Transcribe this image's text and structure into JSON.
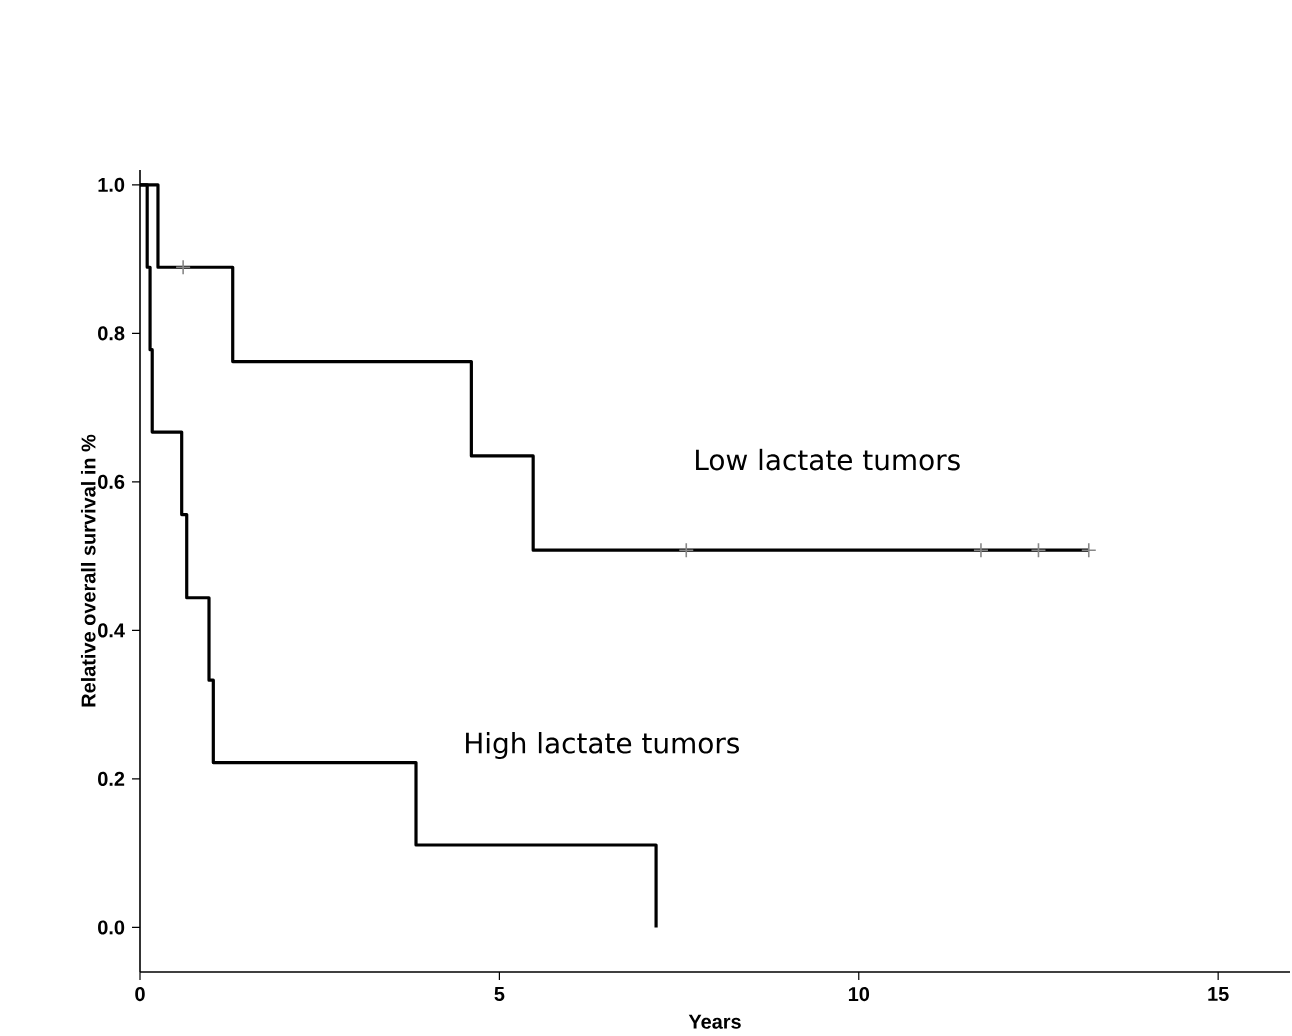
{
  "chart_data": {
    "type": "step",
    "xlabel": "Years",
    "ylabel": "Relative overall survival in %",
    "series": [
      {
        "name": "Low lactate tumors",
        "color": "#000000",
        "x": [
          0,
          0.25,
          1.29,
          4.61,
          5.47,
          13.2
        ],
        "values": [
          1,
          0.889,
          0.762,
          0.635,
          0.508,
          0.508
        ]
      },
      {
        "name": "High lactate tumors",
        "color": "#000000",
        "x": [
          0,
          0.1,
          0.14,
          0.17,
          0.58,
          0.65,
          0.96,
          1.02,
          3.84,
          7.18
        ],
        "values": [
          1,
          0.889,
          0.778,
          0.667,
          0.556,
          0.444,
          0.333,
          0.222,
          0.111,
          0
        ]
      },
      {
        "type": "scatter",
        "marker": "cross",
        "color": "#888888",
        "x": [
          0.6,
          7.6,
          11.7,
          12.5,
          13.2
        ],
        "values": [
          0.889,
          0.508,
          0.508,
          0.508,
          0.508
        ]
      }
    ],
    "xlim": [
      0,
      16
    ],
    "xticks": [
      0,
      5,
      10,
      15
    ],
    "ylim": [
      -0.06,
      1.02
    ],
    "yticks": [
      {
        "value": 0,
        "label": "0.0"
      },
      {
        "value": 0.2,
        "label": "0.2"
      },
      {
        "value": 0.4,
        "label": "0.4"
      },
      {
        "value": 0.6,
        "label": "0.6"
      },
      {
        "value": 0.8,
        "label": "0.8"
      },
      {
        "value": 1,
        "label": "1.0"
      }
    ],
    "grid": false
  }
}
